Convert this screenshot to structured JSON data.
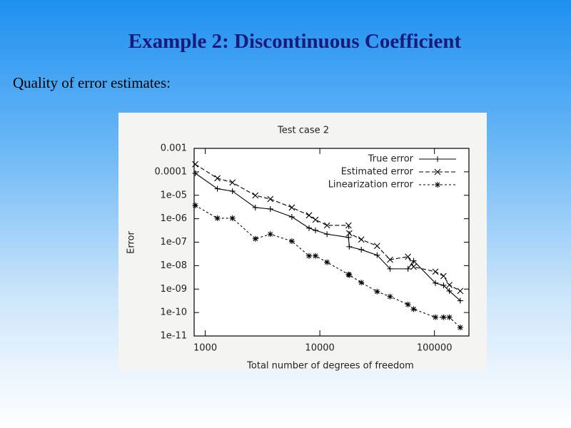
{
  "slide": {
    "title": "Example 2: Discontinuous Coefficient",
    "text": "Quality of error estimates:"
  },
  "chart_data": {
    "type": "line",
    "title": "Test case 2",
    "xlabel": "Total number of degrees of freedom",
    "ylabel": "Error",
    "xscale": "log",
    "yscale": "log",
    "legend": "top-right",
    "xlim": [
      800,
      200000
    ],
    "xticks": [
      1000,
      10000,
      100000
    ],
    "ylim": [
      1e-11,
      0.001
    ],
    "yticks": [
      {
        "value": 1e-11,
        "label": "1e-11"
      },
      {
        "value": 1e-10,
        "label": "1e-10"
      },
      {
        "value": 1e-09,
        "label": "1e-09"
      },
      {
        "value": 1e-08,
        "label": "1e-08"
      },
      {
        "value": 1e-07,
        "label": "1e-07"
      },
      {
        "value": 1e-06,
        "label": "1e-06"
      },
      {
        "value": 1e-05,
        "label": "1e-05"
      },
      0.0001,
      0.001
    ],
    "x": [
      818,
      1277,
      1727,
      2738,
      3700,
      5700,
      8050,
      9160,
      11550,
      17800,
      18060,
      23000,
      31600,
      41000,
      58800,
      65800,
      102000,
      120000,
      135000,
      168000
    ],
    "series": [
      {
        "name": "True error",
        "color": "#000000",
        "dash": "solid",
        "marker": "plus",
        "values": [
          8.7e-05,
          1.9e-05,
          1.5e-05,
          3e-06,
          2.6e-06,
          1.2e-06,
          4e-07,
          3.2e-07,
          2.2e-07,
          1.6e-07,
          6.4e-08,
          4.8e-08,
          2.8e-08,
          7.3e-09,
          7.3e-09,
          1.6e-08,
          1.8e-09,
          1.45e-09,
          8.3e-10,
          3.2e-10
        ]
      },
      {
        "name": "Estimated error",
        "color": "#000000",
        "dash": "dashed",
        "marker": "cross",
        "values": [
          0.00021,
          5.3e-05,
          3.5e-05,
          9.8e-06,
          6.9e-06,
          3e-06,
          1.4e-06,
          9.1e-07,
          5.2e-07,
          5.2e-07,
          2.4e-07,
          1.3e-07,
          6.9e-08,
          1.8e-08,
          2.4e-08,
          8.9e-09,
          5.5e-09,
          3.6e-09,
          1.5e-09,
          8.3e-10
        ]
      },
      {
        "name": "Linearization error",
        "color": "#000000",
        "dash": "dotted",
        "marker": "star",
        "values": [
          3.7e-06,
          1.05e-06,
          1.05e-06,
          1.4e-07,
          2.2e-07,
          1.1e-07,
          2.6e-08,
          2.6e-08,
          1.4e-08,
          4.2e-09,
          4e-09,
          1.9e-09,
          7.8e-10,
          4.8e-10,
          2.2e-10,
          1.4e-10,
          6.3e-11,
          6.3e-11,
          6.3e-11,
          2.3e-11
        ]
      }
    ]
  }
}
